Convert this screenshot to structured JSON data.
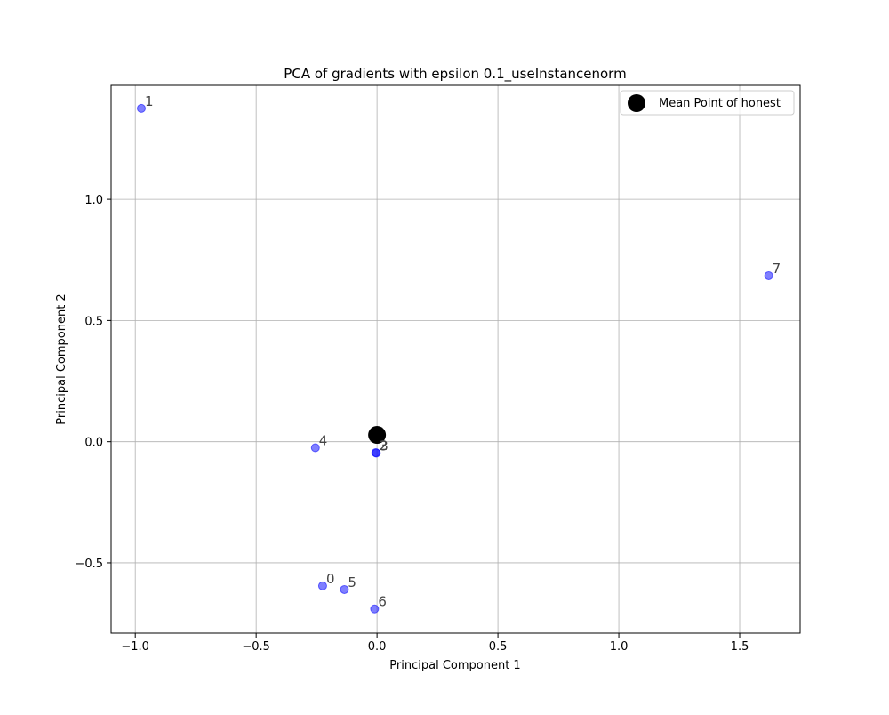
{
  "chart_data": {
    "type": "scatter",
    "title": "PCA of gradients with epsilon 0.1_useInstancenorm",
    "xlabel": "Principal Component 1",
    "ylabel": "Principal Component 2",
    "xlim": [
      -1.1,
      1.75
    ],
    "ylim": [
      -0.79,
      1.47
    ],
    "xticks": [
      -1.0,
      -0.5,
      0.0,
      0.5,
      1.0,
      1.5
    ],
    "xtick_labels": [
      "−1.0",
      "−0.5",
      "0.0",
      "0.5",
      "1.0",
      "1.5"
    ],
    "yticks": [
      -0.5,
      0.0,
      0.5,
      1.0
    ],
    "ytick_labels": [
      "−0.5",
      "0.0",
      "0.5",
      "1.0"
    ],
    "grid": true,
    "legend_placement": "top-right",
    "point_color": "#0000ff",
    "mean_color": "#000000",
    "points": [
      {
        "label": "0",
        "x": -0.225,
        "y": -0.595
      },
      {
        "label": "1",
        "x": -0.975,
        "y": 1.375
      },
      {
        "label": "2",
        "x": -0.005,
        "y": -0.045
      },
      {
        "label": "3",
        "x": -0.003,
        "y": -0.047
      },
      {
        "label": "4",
        "x": -0.255,
        "y": -0.025
      },
      {
        "label": "5",
        "x": -0.135,
        "y": -0.61
      },
      {
        "label": "6",
        "x": -0.01,
        "y": -0.69
      },
      {
        "label": "7",
        "x": 1.62,
        "y": 0.685
      }
    ],
    "mean_point": {
      "x": 0.0,
      "y": 0.028,
      "legend_label": "Mean Point of honest"
    }
  }
}
